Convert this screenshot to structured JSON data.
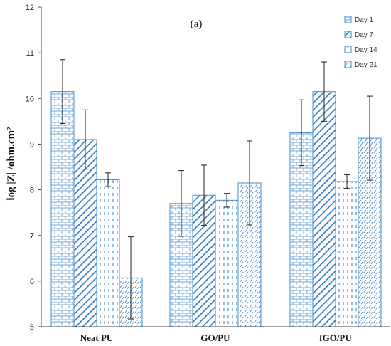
{
  "chart_data": {
    "type": "bar",
    "title": "(a)",
    "xlabel": "",
    "ylabel": "log |Z| /ohm.cm²",
    "ylim": [
      5,
      12
    ],
    "yticks": [
      5,
      6,
      7,
      8,
      9,
      10,
      11,
      12
    ],
    "grid": false,
    "legend_position": "top-right",
    "categories": [
      "Neat PU",
      "GO/PU",
      "fGO/PU"
    ],
    "series": [
      {
        "name": "Day 1",
        "values": [
          10.15,
          7.7,
          9.25
        ],
        "error": [
          0.7,
          0.72,
          0.72
        ],
        "pattern": "brick"
      },
      {
        "name": "Day 7",
        "values": [
          9.1,
          7.88,
          10.15
        ],
        "error": [
          0.65,
          0.66,
          0.65
        ],
        "pattern": "diagonal"
      },
      {
        "name": "Day 14",
        "values": [
          8.22,
          7.77,
          8.18
        ],
        "error": [
          0.15,
          0.15,
          0.15
        ],
        "pattern": "dash"
      },
      {
        "name": "Day 21",
        "values": [
          6.07,
          8.15,
          9.13
        ],
        "error": [
          0.9,
          0.92,
          0.92
        ],
        "pattern": "slash"
      }
    ],
    "colors": {
      "bar_stroke": "#4a8fcf",
      "pattern": "#4a8fcf",
      "error_bar": "#222222",
      "axis": "#444444"
    }
  }
}
